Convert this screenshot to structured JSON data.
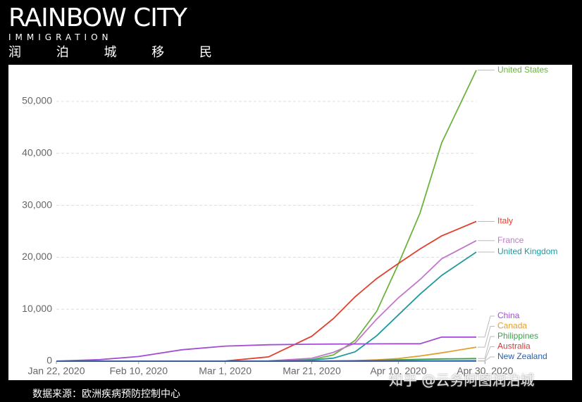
{
  "logo": {
    "name": "RAINBOW CITY",
    "sub": "IMMIGRATION",
    "cn": "润 泊 城 移 民"
  },
  "source": "数据来源：欧洲疾病预防控制中心",
  "watermark": "知乎 @云务阿图润泊城",
  "chart_data": {
    "type": "line",
    "x": [
      "2020-01-22",
      "2020-02-01",
      "2020-02-10",
      "2020-02-20",
      "2020-03-01",
      "2020-03-11",
      "2020-03-21",
      "2020-03-26",
      "2020-03-31",
      "2020-04-05",
      "2020-04-10",
      "2020-04-15",
      "2020-04-20",
      "2020-04-28"
    ],
    "xlim": [
      "2020-01-22",
      "2020-04-28"
    ],
    "xticks": [
      {
        "value": "2020-01-22",
        "label": "Jan 22, 2020"
      },
      {
        "value": "2020-02-10",
        "label": "Feb 10, 2020"
      },
      {
        "value": "2020-03-01",
        "label": "Mar 1, 2020"
      },
      {
        "value": "2020-03-21",
        "label": "Mar 21, 2020"
      },
      {
        "value": "2020-04-10",
        "label": "Apr 10, 2020"
      },
      {
        "value": "2020-04-30",
        "label": "Apr 30, 2020"
      }
    ],
    "ylim": [
      0,
      57000
    ],
    "yticks": [
      0,
      {
        "value": 10000,
        "label": "10,000"
      },
      {
        "value": 20000,
        "label": "20,000"
      },
      {
        "value": 30000,
        "label": "30,000"
      },
      {
        "value": 40000,
        "label": "40,000"
      },
      {
        "value": 50000,
        "label": "50,000"
      }
    ],
    "grid": true,
    "series": [
      {
        "name": "United States",
        "color": "#6ab43e",
        "values": [
          0,
          0,
          0,
          0,
          1,
          30,
          300,
          1200,
          4000,
          9600,
          18700,
          28500,
          42000,
          56000
        ]
      },
      {
        "name": "Italy",
        "color": "#e0402b",
        "values": [
          0,
          0,
          0,
          0,
          30,
          830,
          4800,
          8200,
          12400,
          15900,
          18800,
          21600,
          24100,
          26900
        ]
      },
      {
        "name": "France",
        "color": "#c277c9",
        "values": [
          0,
          0,
          0,
          0,
          2,
          50,
          560,
          1700,
          3500,
          8100,
          12200,
          15700,
          19700,
          23200
        ]
      },
      {
        "name": "United Kingdom",
        "color": "#1f9aa0",
        "values": [
          0,
          0,
          0,
          0,
          0,
          8,
          230,
          580,
          1800,
          4900,
          8900,
          12900,
          16500,
          21000
        ]
      },
      {
        "name": "China",
        "color": "#a24dd6",
        "values": [
          17,
          300,
          900,
          2200,
          2900,
          3160,
          3260,
          3290,
          3310,
          3330,
          3340,
          3350,
          4640,
          4640
        ]
      },
      {
        "name": "Canada",
        "color": "#e0a030",
        "values": [
          0,
          0,
          0,
          0,
          0,
          1,
          20,
          40,
          100,
          250,
          500,
          1000,
          1600,
          2700
        ]
      },
      {
        "name": "Philippines",
        "color": "#3aa04a",
        "values": [
          0,
          0,
          1,
          1,
          1,
          1,
          20,
          50,
          100,
          150,
          250,
          350,
          430,
          500
        ]
      },
      {
        "name": "Australia",
        "color": "#d63a3a",
        "values": [
          0,
          0,
          0,
          0,
          1,
          3,
          7,
          13,
          19,
          35,
          50,
          63,
          71,
          80
        ]
      },
      {
        "name": "New Zealand",
        "color": "#2a5fa8",
        "values": [
          0,
          0,
          0,
          0,
          0,
          0,
          0,
          0,
          1,
          1,
          4,
          9,
          13,
          19
        ]
      }
    ]
  }
}
